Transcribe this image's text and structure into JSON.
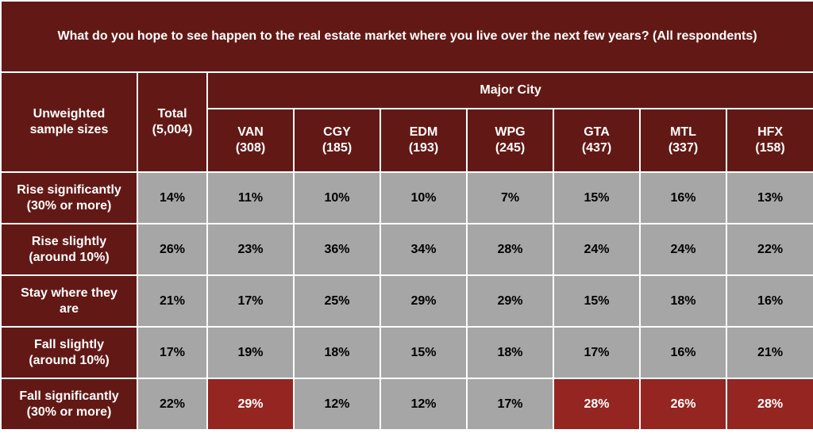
{
  "colors": {
    "header_bg": "#621915",
    "cell_bg": "#a6a6a6",
    "highlight_bg": "#942521",
    "border": "#ffffff"
  },
  "chart_data": {
    "type": "table",
    "title": "What do you hope to see happen to the real estate market where you live over the next few years? (All respondents)",
    "row_header_label": [
      "Unweighted",
      "sample sizes"
    ],
    "total_label": [
      "Total",
      "(5,004)"
    ],
    "group_label": "Major City",
    "columns": [
      {
        "name": "VAN",
        "n": "(308)"
      },
      {
        "name": "CGY",
        "n": "(185)"
      },
      {
        "name": "EDM",
        "n": "(193)"
      },
      {
        "name": "WPG",
        "n": "(245)"
      },
      {
        "name": "GTA",
        "n": "(437)"
      },
      {
        "name": "MTL",
        "n": "(337)"
      },
      {
        "name": "HFX",
        "n": "(158)"
      }
    ],
    "rows": [
      {
        "label": [
          "Rise significantly",
          "(30% or more)"
        ],
        "total": "14%",
        "values": [
          "11%",
          "10%",
          "10%",
          "7%",
          "15%",
          "16%",
          "13%"
        ],
        "highlight": [
          false,
          false,
          false,
          false,
          false,
          false,
          false
        ]
      },
      {
        "label": [
          "Rise slightly",
          "(around 10%)"
        ],
        "total": "26%",
        "values": [
          "23%",
          "36%",
          "34%",
          "28%",
          "24%",
          "24%",
          "22%"
        ],
        "highlight": [
          false,
          false,
          false,
          false,
          false,
          false,
          false
        ]
      },
      {
        "label": [
          "Stay where they",
          "are"
        ],
        "total": "21%",
        "values": [
          "17%",
          "25%",
          "29%",
          "29%",
          "15%",
          "18%",
          "16%"
        ],
        "highlight": [
          false,
          false,
          false,
          false,
          false,
          false,
          false
        ]
      },
      {
        "label": [
          "Fall slightly",
          "(around 10%)"
        ],
        "total": "17%",
        "values": [
          "19%",
          "18%",
          "15%",
          "18%",
          "17%",
          "16%",
          "21%"
        ],
        "highlight": [
          false,
          false,
          false,
          false,
          false,
          false,
          false
        ]
      },
      {
        "label": [
          "Fall significantly",
          "(30% or more)"
        ],
        "total": "22%",
        "values": [
          "29%",
          "12%",
          "12%",
          "17%",
          "28%",
          "26%",
          "28%"
        ],
        "highlight": [
          true,
          false,
          false,
          false,
          true,
          true,
          true
        ]
      }
    ]
  }
}
